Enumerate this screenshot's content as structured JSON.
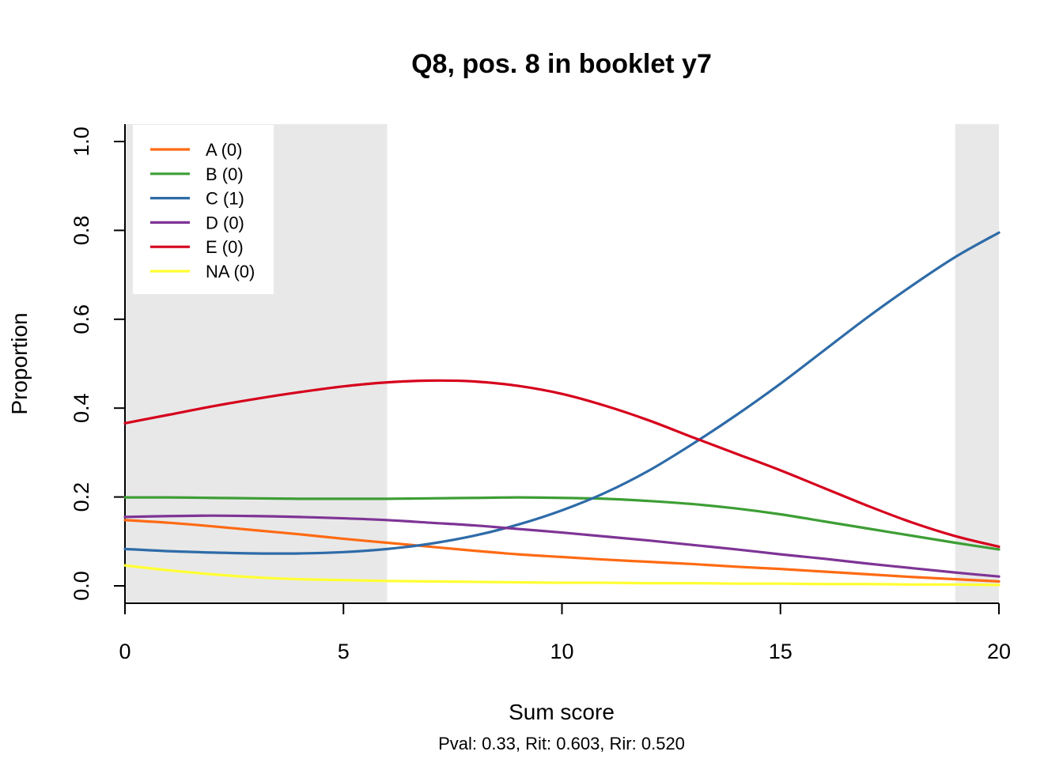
{
  "chart_data": {
    "type": "line",
    "title": "Q8, pos. 8 in booklet y7",
    "subtitle": "Pval: 0.33, Rit: 0.603, Rir: 0.520",
    "xlabel": "Sum score",
    "ylabel": "Proportion",
    "xlim": [
      0,
      20
    ],
    "ylim": [
      0,
      1
    ],
    "x_ticks": [
      "0",
      "5",
      "10",
      "15",
      "20"
    ],
    "y_ticks": [
      "0.0",
      "0.2",
      "0.4",
      "0.6",
      "0.8",
      "1.0"
    ],
    "grid": false,
    "legend_position": "top-left",
    "shaded_x_ranges": [
      [
        0,
        6
      ],
      [
        19,
        20
      ]
    ],
    "shade_color": "#e8e8e8",
    "x": [
      0,
      1,
      2,
      3,
      4,
      5,
      6,
      7,
      8,
      9,
      10,
      11,
      12,
      13,
      14,
      15,
      16,
      17,
      18,
      19,
      20
    ],
    "series": [
      {
        "name": "A (0)",
        "color": "#ff6a13",
        "values": [
          0.148,
          0.142,
          0.134,
          0.125,
          0.116,
          0.106,
          0.097,
          0.088,
          0.079,
          0.071,
          0.065,
          0.059,
          0.054,
          0.049,
          0.043,
          0.038,
          0.032,
          0.026,
          0.02,
          0.015,
          0.01
        ]
      },
      {
        "name": "B (0)",
        "color": "#3d9e35",
        "values": [
          0.199,
          0.199,
          0.198,
          0.197,
          0.196,
          0.196,
          0.196,
          0.197,
          0.198,
          0.199,
          0.198,
          0.196,
          0.191,
          0.184,
          0.174,
          0.161,
          0.145,
          0.129,
          0.113,
          0.097,
          0.082
        ]
      },
      {
        "name": "C (1)",
        "color": "#2e6ba8",
        "values": [
          0.083,
          0.078,
          0.075,
          0.073,
          0.073,
          0.076,
          0.083,
          0.095,
          0.113,
          0.138,
          0.17,
          0.21,
          0.26,
          0.32,
          0.385,
          0.455,
          0.53,
          0.605,
          0.675,
          0.74,
          0.795
        ]
      },
      {
        "name": "D (0)",
        "color": "#7e3495",
        "values": [
          0.155,
          0.157,
          0.158,
          0.157,
          0.155,
          0.152,
          0.148,
          0.142,
          0.136,
          0.128,
          0.12,
          0.111,
          0.102,
          0.092,
          0.082,
          0.071,
          0.061,
          0.05,
          0.04,
          0.03,
          0.021
        ]
      },
      {
        "name": "E (0)",
        "color": "#d6001c",
        "values": [
          0.366,
          0.385,
          0.404,
          0.421,
          0.436,
          0.449,
          0.458,
          0.462,
          0.46,
          0.45,
          0.432,
          0.405,
          0.372,
          0.334,
          0.297,
          0.26,
          0.22,
          0.18,
          0.143,
          0.112,
          0.088
        ]
      },
      {
        "name": "NA (0)",
        "color": "#ffff33",
        "values": [
          0.046,
          0.035,
          0.026,
          0.019,
          0.015,
          0.013,
          0.011,
          0.01,
          0.009,
          0.008,
          0.007,
          0.007,
          0.006,
          0.006,
          0.005,
          0.005,
          0.004,
          0.004,
          0.003,
          0.003,
          0.002
        ]
      }
    ]
  }
}
